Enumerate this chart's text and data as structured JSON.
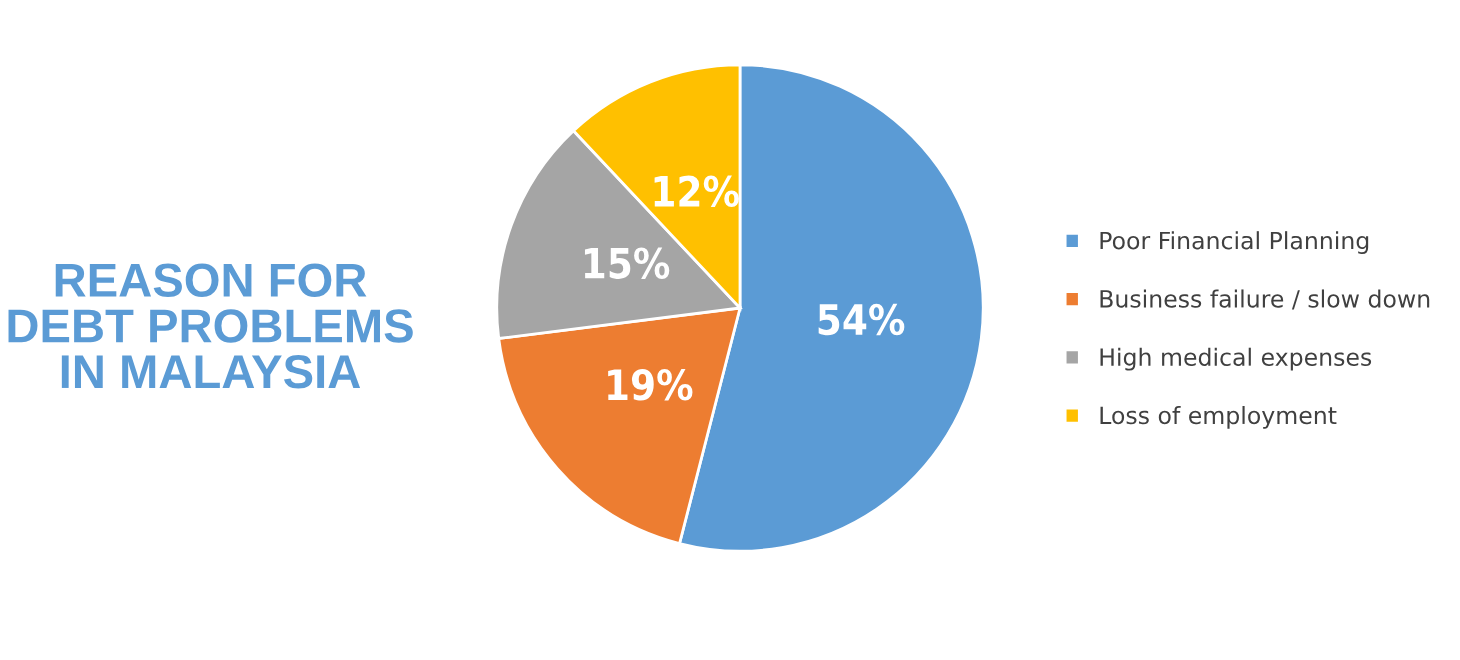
{
  "chart_data": {
    "type": "pie",
    "title": "REASON FOR\nDEBT PROBLEMS\nIN MALAYSIA",
    "categories": [
      "Poor Financial Planning",
      "Business failure / slow down",
      "High medical expenses",
      "Loss of employment"
    ],
    "values": [
      54,
      19,
      15,
      12
    ],
    "colors": [
      "#5b9bd5",
      "#ed7d31",
      "#a5a5a5",
      "#ffc000"
    ],
    "value_labels": [
      "54%",
      "19%",
      "15%",
      "12%"
    ],
    "legend": "right"
  }
}
